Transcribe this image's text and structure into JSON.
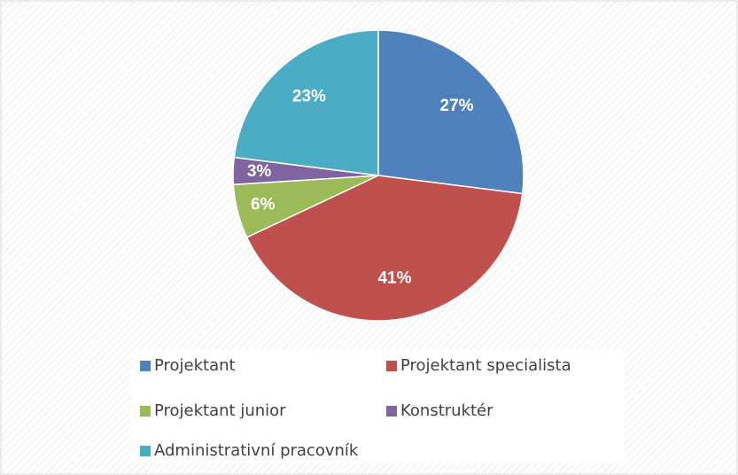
{
  "chart_data": {
    "type": "pie",
    "categories": [
      "Projektant",
      "Projektant specialista",
      "Projektant junior",
      "Konstruktér",
      "Administrativní pracovník"
    ],
    "values": [
      27,
      41,
      6,
      3,
      23
    ],
    "value_labels": [
      "27%",
      "41%",
      "6%",
      "3%",
      "23%"
    ],
    "colors": [
      "#4f81bd",
      "#c0504d",
      "#9bbb59",
      "#8064a2",
      "#4bacc6"
    ],
    "legend": "bottom"
  }
}
